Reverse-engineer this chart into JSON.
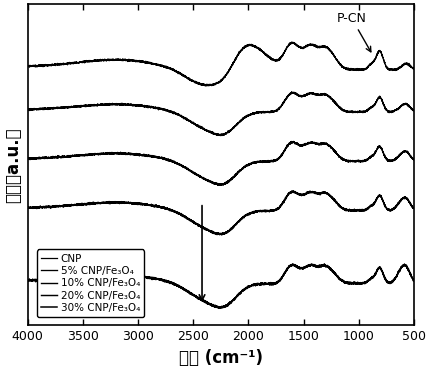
{
  "xmin": 500,
  "xmax": 4000,
  "xlabel": "波数 (cm⁻¹)",
  "ylabel": "强度（a.u.）",
  "legend_labels": [
    "CNP",
    "5% CNP/Fe₃O₄",
    "10% CNP/Fe₃O₄",
    "20% CNP/Fe₃O₄",
    "30% CNP/Fe₃O₄"
  ],
  "annotation_text": "P-CN",
  "line_color": "#000000",
  "offsets": [
    3.8,
    2.95,
    2.1,
    1.25,
    0.0
  ],
  "figsize": [
    4.3,
    3.71
  ],
  "dpi": 100,
  "xlabel_fontsize": 12,
  "ylabel_fontsize": 12,
  "tick_fontsize": 9,
  "legend_fontsize": 7.5,
  "xticks": [
    4000,
    3500,
    3000,
    2500,
    2000,
    1500,
    1000,
    500
  ]
}
